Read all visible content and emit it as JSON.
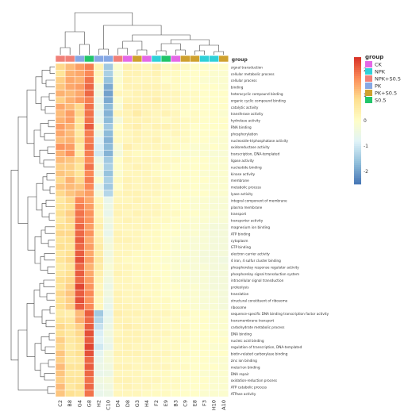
{
  "chart_data": {
    "type": "heatmap",
    "title": "",
    "columns": [
      "C2",
      "B8",
      "G4",
      "G8",
      "H2",
      "C10",
      "D4",
      "D8",
      "G3",
      "H4",
      "F2",
      "E9",
      "B3",
      "C9",
      "E8",
      "F3",
      "H10",
      "A10"
    ],
    "column_groups": [
      "NPK+S0.5",
      "NPK+S0.5",
      "PK",
      "S0.5",
      "PK",
      "PK",
      "NPK+S0.5",
      "CK",
      "PK+S0.5",
      "CK",
      "NPK",
      "S0.5",
      "CK",
      "PK+S0.5",
      "PK+S0.5",
      "NPK",
      "NPK",
      "PK+S0.5"
    ],
    "rows": [
      "signal transduction",
      "cellular metabolic process",
      "cellular process",
      "binding",
      "heterocyclic compound binding",
      "organic cyclic compound binding",
      "catalytic activity",
      "transferase activity",
      "hydrolase activity",
      "RNA binding",
      "phosphorylation",
      "nucleoside-triphosphatase activity",
      "oxidoreductase activity",
      "transcription, DNA-templated",
      "ligase activity",
      "nucleotide binding",
      "kinase activity",
      "membrane",
      "metabolic process",
      "lyase activity",
      "integral component of membrane",
      "plasma membrane",
      "transport",
      "transporter activity",
      "magnesium ion binding",
      "ATP binding",
      "cytoplasm",
      "GTP binding",
      "electron carrier activity",
      "4 iron, 4 sulfur cluster binding",
      "phosphorelay response regulator activity",
      "phosphorelay signal transduction system",
      "intracellular signal transduction",
      "proteolysis",
      "translation",
      "structural constituent of ribosome",
      "ribosome",
      "sequence-specific DNA binding transcription factor activity",
      "transmembrane transport",
      "carbohydrate metabolic process",
      "DNA binding",
      "nucleic acid binding",
      "regulation of transcription, DNA-templated",
      "biotin-related carboxylase binding",
      "zinc ion binding",
      "metal ion binding",
      "DNA repair",
      "oxidation-reduction process",
      "ATP catabolic process",
      "ATPase activity"
    ],
    "values": [
      [
        0.9,
        1.2,
        1.5,
        1.8,
        0.3,
        -1.5,
        -0.1,
        0.4,
        0.3,
        0.2,
        0.4,
        0.1,
        0.2,
        0.1,
        0.0,
        0.0,
        0.0,
        0.0
      ],
      [
        0.7,
        1.3,
        1.4,
        1.7,
        0.2,
        -1.4,
        -0.2,
        0.3,
        0.3,
        0.2,
        0.3,
        0.1,
        0.1,
        0.0,
        0.0,
        0.0,
        -0.1,
        -0.1
      ],
      [
        1.0,
        1.4,
        1.3,
        1.9,
        0.1,
        -1.6,
        -0.1,
        0.3,
        0.2,
        0.2,
        0.2,
        0.0,
        0.1,
        0.0,
        0.0,
        -0.1,
        -0.1,
        -0.1
      ],
      [
        1.1,
        1.4,
        1.5,
        2.0,
        -0.3,
        -1.9,
        0.0,
        0.3,
        0.3,
        0.3,
        0.3,
        0.2,
        0.1,
        0.0,
        0.0,
        0.0,
        0.0,
        -0.1
      ],
      [
        1.3,
        1.2,
        1.4,
        2.0,
        -0.4,
        -2.0,
        0.2,
        0.2,
        0.3,
        0.3,
        0.3,
        0.2,
        0.2,
        0.1,
        0.1,
        0.0,
        0.0,
        0.0
      ],
      [
        1.0,
        1.3,
        1.5,
        1.8,
        -0.6,
        -1.9,
        -0.1,
        0.3,
        0.3,
        0.3,
        0.4,
        0.2,
        0.2,
        0.1,
        0.1,
        0.0,
        0.0,
        0.0
      ],
      [
        1.4,
        1.2,
        0.9,
        1.9,
        -0.5,
        -1.7,
        -0.2,
        0.4,
        0.4,
        0.3,
        0.3,
        0.2,
        0.1,
        0.1,
        0.0,
        0.0,
        0.0,
        0.0
      ],
      [
        1.2,
        1.5,
        0.9,
        1.9,
        -0.7,
        -1.8,
        0.2,
        0.3,
        0.5,
        0.3,
        0.2,
        0.3,
        0.2,
        0.0,
        0.1,
        0.0,
        0.0,
        -0.1
      ],
      [
        1.3,
        1.5,
        0.7,
        1.9,
        -0.6,
        -1.7,
        -0.3,
        0.3,
        0.3,
        0.3,
        0.2,
        0.1,
        0.2,
        0.1,
        0.1,
        0.0,
        0.0,
        0.0
      ],
      [
        1.5,
        1.3,
        0.7,
        2.1,
        -0.2,
        -1.5,
        0.0,
        0.3,
        0.4,
        0.2,
        0.3,
        0.3,
        0.2,
        0.1,
        0.0,
        0.0,
        0.0,
        0.0
      ],
      [
        1.4,
        1.2,
        0.6,
        1.8,
        -0.5,
        -1.7,
        0.1,
        0.2,
        0.3,
        0.2,
        0.2,
        0.1,
        0.2,
        0.1,
        0.0,
        0.0,
        0.0,
        -0.1
      ],
      [
        1.2,
        1.3,
        0.8,
        1.8,
        -0.8,
        -1.8,
        0.1,
        0.2,
        0.3,
        0.2,
        0.3,
        0.1,
        0.1,
        0.1,
        0.0,
        0.0,
        -0.1,
        -0.1
      ],
      [
        1.6,
        1.5,
        0.5,
        1.9,
        -0.9,
        -1.7,
        -0.2,
        0.4,
        0.2,
        0.2,
        0.2,
        0.2,
        0.1,
        0.0,
        -0.1,
        -0.1,
        0.0,
        -0.1
      ],
      [
        1.3,
        1.6,
        0.5,
        1.8,
        -1.0,
        -1.8,
        -0.3,
        0.2,
        0.1,
        0.1,
        0.1,
        0.0,
        -0.1,
        -0.1,
        -0.1,
        -0.1,
        -0.2,
        -0.2
      ],
      [
        1.2,
        1.1,
        0.9,
        1.7,
        -0.5,
        -1.5,
        0.0,
        0.3,
        0.2,
        0.2,
        0.2,
        0.1,
        0.1,
        0.0,
        0.0,
        0.0,
        -0.1,
        -0.1
      ],
      [
        1.0,
        1.0,
        0.7,
        1.9,
        -0.3,
        -1.4,
        0.0,
        0.2,
        0.3,
        0.2,
        0.1,
        0.1,
        0.0,
        0.0,
        0.0,
        0.0,
        -0.1,
        -0.1
      ],
      [
        1.1,
        1.0,
        0.7,
        1.7,
        -0.5,
        -1.6,
        -0.1,
        0.2,
        0.2,
        0.2,
        0.1,
        0.0,
        0.0,
        0.0,
        0.0,
        -0.1,
        -0.1,
        -0.1
      ],
      [
        0.9,
        1.3,
        0.9,
        1.8,
        -0.1,
        -1.4,
        0.1,
        0.3,
        0.2,
        0.2,
        0.2,
        0.1,
        0.0,
        0.0,
        0.0,
        0.0,
        -0.1,
        -0.1
      ],
      [
        1.1,
        1.2,
        1.1,
        1.7,
        -0.6,
        -1.5,
        0.0,
        0.3,
        0.2,
        0.2,
        0.2,
        0.1,
        0.1,
        0.0,
        0.0,
        -0.1,
        -0.1,
        -0.1
      ],
      [
        0.9,
        1.1,
        1.3,
        1.5,
        -0.3,
        -1.3,
        0.2,
        0.3,
        0.3,
        0.2,
        0.2,
        0.1,
        0.0,
        0.0,
        0.0,
        0.0,
        -0.1,
        -0.1
      ],
      [
        0.6,
        0.9,
        1.7,
        1.4,
        0.2,
        -0.6,
        0.2,
        0.2,
        0.3,
        0.2,
        0.1,
        0.1,
        0.0,
        0.0,
        -0.1,
        -0.1,
        -0.2,
        -0.2
      ],
      [
        0.7,
        0.8,
        1.8,
        1.5,
        0.3,
        -0.5,
        0.3,
        0.3,
        0.2,
        0.2,
        0.2,
        0.1,
        0.0,
        0.0,
        -0.1,
        -0.1,
        -0.2,
        -0.2
      ],
      [
        0.8,
        1.0,
        1.9,
        1.6,
        0.2,
        -0.6,
        0.3,
        0.2,
        0.3,
        0.2,
        0.2,
        0.1,
        0.1,
        0.0,
        0.0,
        -0.1,
        -0.1,
        -0.2
      ],
      [
        0.6,
        0.9,
        1.9,
        1.6,
        0.3,
        -0.4,
        0.2,
        0.3,
        0.2,
        0.2,
        0.1,
        0.1,
        0.0,
        0.0,
        -0.1,
        -0.1,
        -0.2,
        -0.2
      ],
      [
        0.8,
        0.8,
        2.0,
        1.5,
        0.4,
        -0.5,
        0.2,
        0.2,
        0.2,
        0.2,
        0.1,
        0.0,
        0.0,
        -0.1,
        -0.1,
        -0.2,
        -0.3,
        -0.3
      ],
      [
        0.9,
        0.9,
        2.0,
        1.6,
        0.3,
        -0.6,
        0.3,
        0.2,
        0.2,
        0.1,
        0.1,
        0.0,
        0.0,
        -0.1,
        -0.1,
        -0.2,
        -0.3,
        -0.3
      ],
      [
        0.7,
        0.8,
        2.1,
        1.4,
        0.4,
        -0.4,
        0.3,
        0.3,
        0.2,
        0.1,
        0.1,
        0.0,
        -0.1,
        -0.1,
        -0.2,
        -0.2,
        -0.3,
        -0.3
      ],
      [
        0.8,
        0.7,
        2.0,
        1.5,
        0.5,
        -0.3,
        0.2,
        0.2,
        0.2,
        0.1,
        0.1,
        0.0,
        -0.1,
        -0.1,
        -0.2,
        -0.2,
        -0.3,
        -0.3
      ],
      [
        0.6,
        0.8,
        2.1,
        1.4,
        0.5,
        -0.4,
        0.2,
        0.2,
        0.1,
        0.1,
        0.0,
        0.0,
        -0.1,
        -0.1,
        -0.2,
        -0.3,
        -0.3,
        -0.3
      ],
      [
        0.7,
        0.9,
        2.2,
        1.5,
        0.6,
        -0.3,
        0.2,
        0.1,
        0.1,
        0.1,
        0.0,
        -0.1,
        -0.1,
        -0.2,
        -0.2,
        -0.3,
        -0.3,
        -0.4
      ],
      [
        0.5,
        0.7,
        2.0,
        1.3,
        0.5,
        -0.2,
        0.2,
        0.2,
        0.1,
        0.1,
        0.0,
        0.0,
        -0.1,
        -0.1,
        -0.2,
        -0.2,
        -0.3,
        -0.3
      ],
      [
        0.6,
        0.8,
        2.1,
        1.4,
        0.4,
        -0.3,
        0.3,
        0.2,
        0.1,
        0.1,
        0.0,
        0.0,
        -0.1,
        -0.1,
        -0.2,
        -0.2,
        -0.3,
        -0.3
      ],
      [
        0.8,
        0.9,
        2.0,
        1.5,
        0.3,
        -0.4,
        0.2,
        0.2,
        0.1,
        0.1,
        0.1,
        0.0,
        -0.1,
        -0.1,
        -0.2,
        -0.2,
        -0.3,
        -0.3
      ],
      [
        0.7,
        1.0,
        2.3,
        1.6,
        0.2,
        -0.5,
        0.2,
        0.2,
        0.2,
        0.1,
        0.1,
        0.0,
        0.0,
        -0.1,
        -0.1,
        -0.2,
        -0.3,
        -0.3
      ],
      [
        0.9,
        1.1,
        2.1,
        1.7,
        0.3,
        -0.4,
        0.3,
        0.2,
        0.2,
        0.1,
        0.1,
        0.0,
        0.0,
        -0.1,
        -0.1,
        -0.2,
        -0.2,
        -0.3
      ],
      [
        0.8,
        1.0,
        2.2,
        1.6,
        0.2,
        -0.5,
        0.3,
        0.2,
        0.2,
        0.2,
        0.1,
        0.1,
        0.0,
        -0.1,
        -0.1,
        -0.2,
        -0.2,
        -0.3
      ],
      [
        0.8,
        1.0,
        2.1,
        1.7,
        0.2,
        -0.6,
        0.3,
        0.3,
        0.2,
        0.2,
        0.1,
        0.1,
        0.0,
        0.0,
        -0.1,
        -0.2,
        -0.2,
        -0.3
      ],
      [
        0.5,
        0.4,
        1.2,
        2.1,
        -1.5,
        -0.7,
        0.4,
        0.3,
        0.3,
        0.2,
        0.2,
        0.2,
        0.1,
        0.1,
        0.0,
        0.0,
        -0.1,
        -0.1
      ],
      [
        0.7,
        0.6,
        1.3,
        2.0,
        -1.3,
        -0.6,
        0.3,
        0.3,
        0.2,
        0.2,
        0.2,
        0.1,
        0.1,
        0.0,
        0.0,
        0.0,
        -0.1,
        -0.1
      ],
      [
        0.9,
        0.7,
        1.0,
        2.1,
        -1.1,
        -0.5,
        0.3,
        0.4,
        0.3,
        0.2,
        0.2,
        0.1,
        0.1,
        0.1,
        0.0,
        0.0,
        -0.1,
        -0.1
      ],
      [
        0.8,
        0.6,
        0.9,
        2.2,
        -0.9,
        -0.4,
        0.2,
        0.3,
        0.3,
        0.2,
        0.2,
        0.2,
        0.1,
        0.1,
        0.0,
        0.0,
        0.0,
        -0.1
      ],
      [
        1.0,
        0.6,
        0.8,
        2.1,
        -0.8,
        -0.5,
        0.3,
        0.3,
        0.3,
        0.2,
        0.2,
        0.1,
        0.1,
        0.1,
        0.0,
        0.0,
        0.0,
        0.0
      ],
      [
        0.9,
        0.5,
        0.7,
        2.3,
        -1.0,
        -0.6,
        0.2,
        0.3,
        0.2,
        0.2,
        0.1,
        0.1,
        0.1,
        0.0,
        0.0,
        0.0,
        -0.1,
        -0.1
      ],
      [
        1.1,
        0.6,
        0.8,
        2.2,
        -0.7,
        -0.3,
        0.3,
        0.3,
        0.3,
        0.2,
        0.2,
        0.2,
        0.1,
        0.1,
        0.0,
        0.0,
        0.0,
        0.0
      ],
      [
        1.0,
        0.5,
        0.6,
        2.0,
        -0.6,
        -0.3,
        0.2,
        0.2,
        0.2,
        0.2,
        0.2,
        0.1,
        0.1,
        0.0,
        0.0,
        0.0,
        -0.1,
        -0.1
      ],
      [
        1.2,
        0.7,
        0.7,
        2.1,
        -0.5,
        -0.4,
        0.3,
        0.3,
        0.2,
        0.2,
        0.2,
        0.2,
        0.1,
        0.1,
        0.0,
        0.0,
        0.0,
        -0.1
      ],
      [
        1.1,
        0.6,
        0.6,
        2.0,
        -0.6,
        -0.5,
        0.2,
        0.2,
        0.2,
        0.1,
        0.1,
        0.1,
        0.0,
        0.0,
        0.0,
        -0.1,
        -0.1,
        -0.1
      ],
      [
        1.0,
        0.7,
        0.7,
        1.9,
        -0.4,
        -0.3,
        0.3,
        0.3,
        0.2,
        0.2,
        0.2,
        0.1,
        0.1,
        0.0,
        0.0,
        0.0,
        -0.1,
        -0.1
      ],
      [
        1.2,
        0.6,
        0.8,
        2.0,
        -0.5,
        -0.4,
        0.2,
        0.3,
        0.2,
        0.2,
        0.1,
        0.1,
        0.1,
        0.0,
        0.0,
        0.0,
        -0.1,
        -0.1
      ],
      [
        1.1,
        0.8,
        0.7,
        1.9,
        -0.6,
        -0.5,
        0.2,
        0.2,
        0.2,
        0.1,
        0.1,
        0.1,
        0.0,
        0.0,
        0.0,
        -0.1,
        -0.1,
        -0.1
      ]
    ],
    "color_scale": {
      "min": -2.5,
      "max": 2.5,
      "ticks": [
        2,
        1,
        0,
        -1,
        -2
      ],
      "colors": [
        "#4575b4",
        "#91bfdb",
        "#e0f3f8",
        "#fffdc8",
        "#fee090",
        "#fc8d59",
        "#d73027"
      ]
    },
    "legend": {
      "title": "group",
      "entries": [
        {
          "name": "CK",
          "color": "#e468e6"
        },
        {
          "name": "NPK",
          "color": "#2fd0d8"
        },
        {
          "name": "NPK+S0.5",
          "color": "#f08078"
        },
        {
          "name": "PK",
          "color": "#86a8e4"
        },
        {
          "name": "PK+S0.5",
          "color": "#cfa12e"
        },
        {
          "name": "S0.5",
          "color": "#22c56a"
        }
      ]
    },
    "annotation_label": "group"
  }
}
